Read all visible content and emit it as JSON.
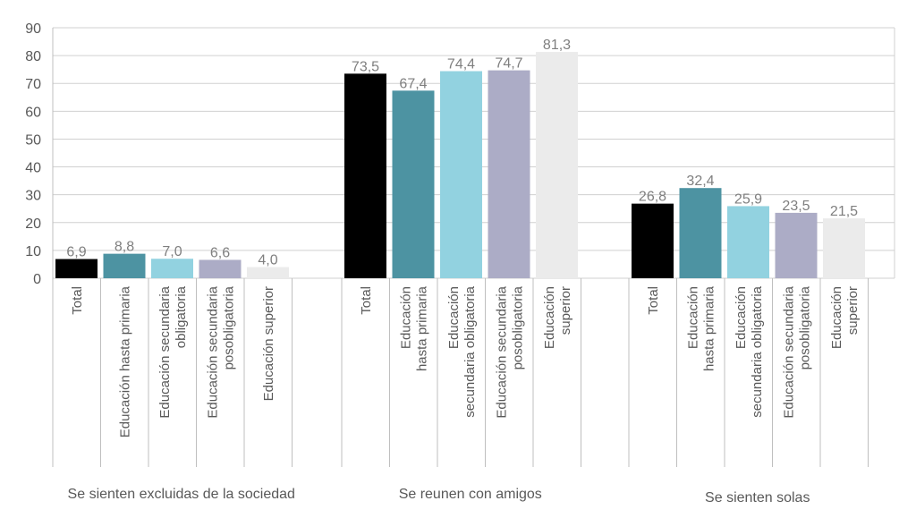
{
  "chart_data": {
    "type": "bar",
    "ylim": [
      0,
      90
    ],
    "yticks": [
      "0",
      "10",
      "20",
      "30",
      "40",
      "50",
      "60",
      "70",
      "80",
      "90"
    ],
    "grid": true,
    "legend": "none",
    "colors": [
      "#000000",
      "#4d93a2",
      "#92d2e0",
      "#acacc6",
      "#ebebeb"
    ],
    "groups": [
      {
        "label": "Se sienten excluidas de la sociedad",
        "bars": [
          {
            "category": [
              "Total"
            ],
            "value": 6.9,
            "label": "6,9"
          },
          {
            "category": [
              "Educación hasta primaria"
            ],
            "value": 8.8,
            "label": "8,8"
          },
          {
            "category": [
              "Educación secundaria",
              "obligatoria"
            ],
            "value": 7.0,
            "label": "7,0"
          },
          {
            "category": [
              "Educación secundaria",
              "posobligatoria"
            ],
            "value": 6.6,
            "label": "6,6"
          },
          {
            "category": [
              "Educación superior"
            ],
            "value": 4.0,
            "label": "4,0"
          }
        ]
      },
      {
        "label": "Se reunen con amigos",
        "bars": [
          {
            "category": [
              "Total"
            ],
            "value": 73.5,
            "label": "73,5"
          },
          {
            "category": [
              "Educación",
              "hasta primaria"
            ],
            "value": 67.4,
            "label": "67,4"
          },
          {
            "category": [
              "Educación",
              "secundaria obligatoria"
            ],
            "value": 74.4,
            "label": "74,4"
          },
          {
            "category": [
              "Educación secundaria",
              "posobligatoria"
            ],
            "value": 74.7,
            "label": "74,7"
          },
          {
            "category": [
              "Educación",
              "superior"
            ],
            "value": 81.3,
            "label": "81,3"
          }
        ]
      },
      {
        "label": "Se sienten solas",
        "bars": [
          {
            "category": [
              "Total"
            ],
            "value": 26.8,
            "label": "26,8"
          },
          {
            "category": [
              "Educación",
              "hasta primaria"
            ],
            "value": 32.4,
            "label": "32,4"
          },
          {
            "category": [
              "Educación",
              "secundaria obligatoria"
            ],
            "value": 25.9,
            "label": "25,9"
          },
          {
            "category": [
              "Educación secundaria",
              "posobligatoria"
            ],
            "value": 23.5,
            "label": "23,5"
          },
          {
            "category": [
              "Educación",
              "superior"
            ],
            "value": 21.5,
            "label": "21,5"
          }
        ]
      }
    ]
  }
}
